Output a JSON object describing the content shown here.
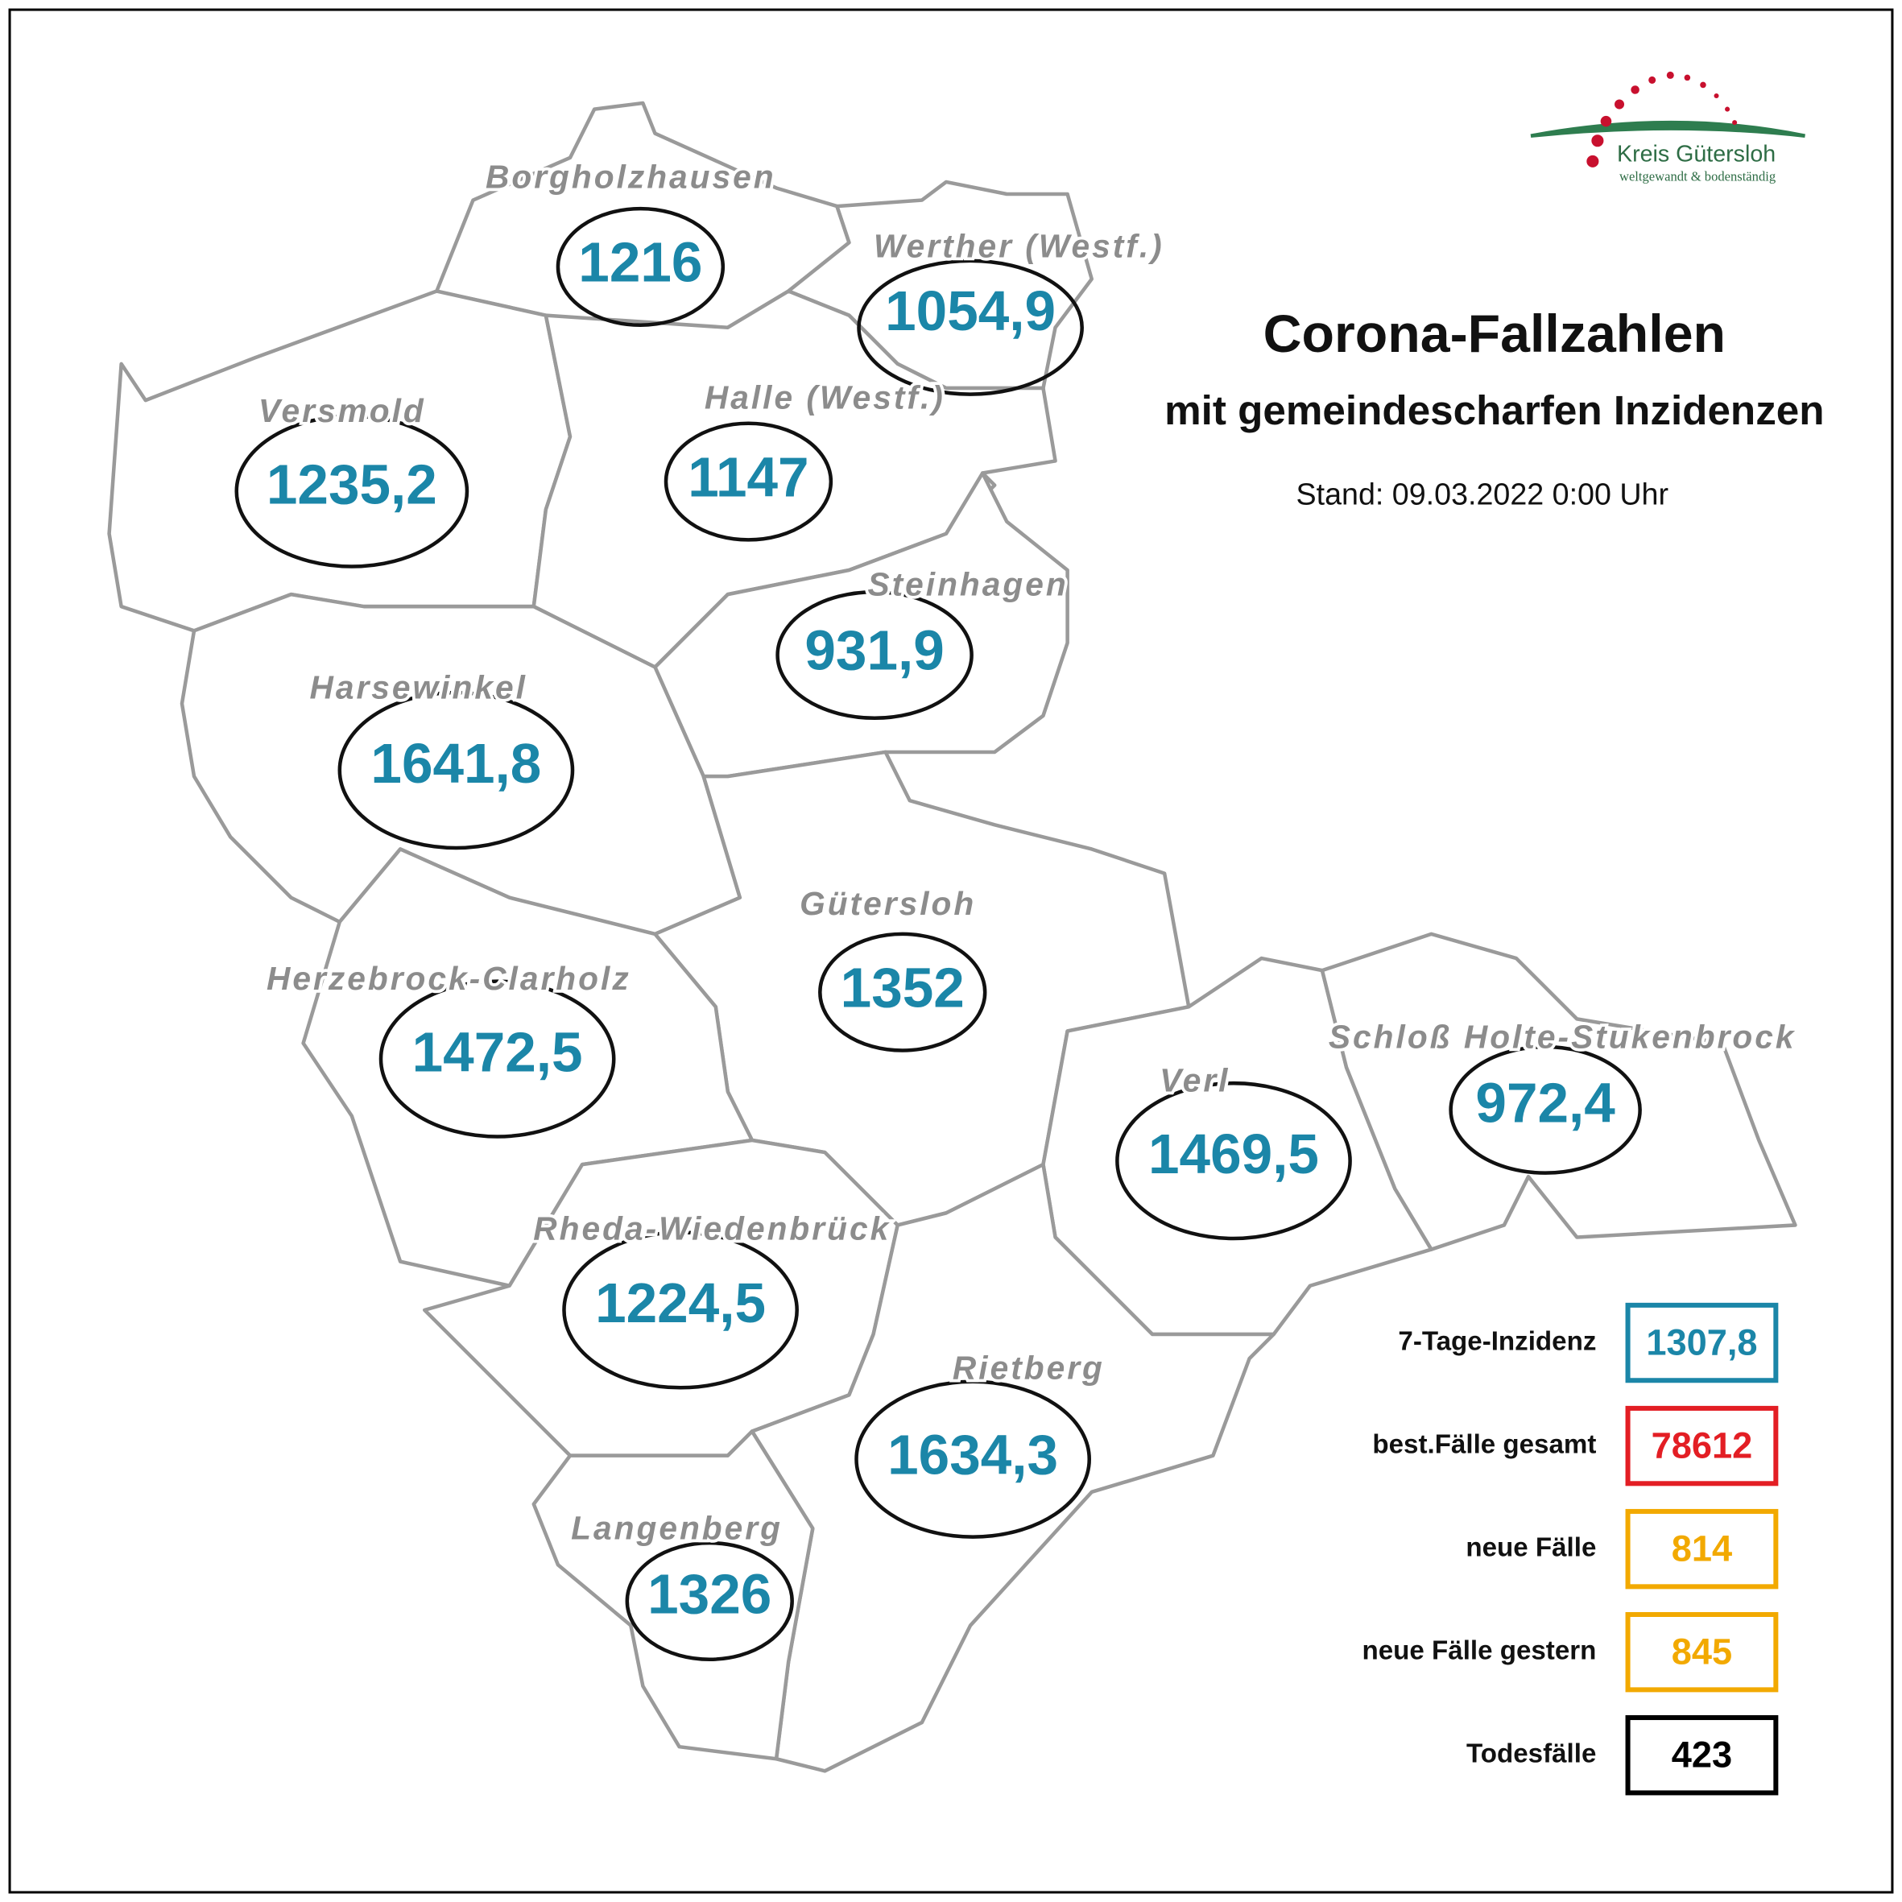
{
  "header": {
    "title": "Corona-Fallzahlen",
    "subtitle": "mit gemeindescharfen Inzidenzen",
    "date": "Stand: 09.03.2022 0:00 Uhr"
  },
  "logo": {
    "name": "Kreis Gütersloh",
    "slogan": "weltgewandt & bodenständig"
  },
  "municipalities": [
    {
      "name": "Borgholzhausen",
      "value": "1216"
    },
    {
      "name": "Werther (Westf.)",
      "value": "1054,9"
    },
    {
      "name": "Versmold",
      "value": "1235,2"
    },
    {
      "name": "Halle (Westf.)",
      "value": "1147"
    },
    {
      "name": "Steinhagen",
      "value": "931,9"
    },
    {
      "name": "Harsewinkel",
      "value": "1641,8"
    },
    {
      "name": "Gütersloh",
      "value": "1352"
    },
    {
      "name": "Herzebrock-Clarholz",
      "value": "1472,5"
    },
    {
      "name": "Verl",
      "value": "1469,5"
    },
    {
      "name": "Schloß Holte-Stukenbrock",
      "value": "972,4"
    },
    {
      "name": "Rheda-Wiedenbrück",
      "value": "1224,5"
    },
    {
      "name": "Rietberg",
      "value": "1634,3"
    },
    {
      "name": "Langenberg",
      "value": "1326"
    }
  ],
  "legend": [
    {
      "label": "7-Tage-Inzidenz",
      "value": "1307,8"
    },
    {
      "label": "best.Fälle gesamt",
      "value": "78612"
    },
    {
      "label": "neue Fälle",
      "value": "814"
    },
    {
      "label": "neue Fälle gestern",
      "value": "845"
    },
    {
      "label": "Todesfälle",
      "value": "423"
    }
  ]
}
